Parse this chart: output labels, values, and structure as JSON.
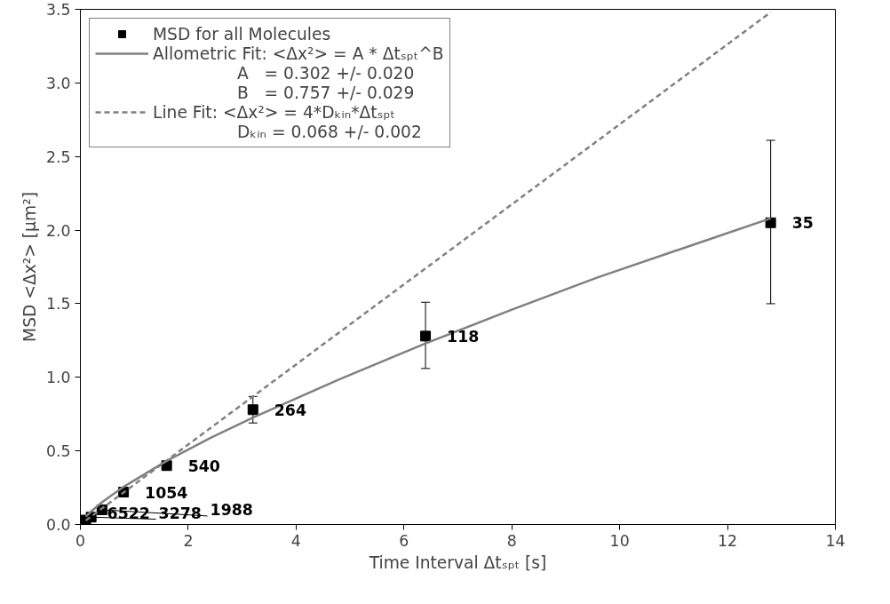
{
  "chart_data": {
    "type": "scatter",
    "xlabel": "Time Interval Δtₛₚₜ [s]",
    "ylabel": "MSD <Δx²> [µm²]",
    "xlim": [
      0,
      14
    ],
    "xticks": [
      0,
      2,
      4,
      6,
      8,
      10,
      12,
      14
    ],
    "ylim": [
      0,
      3.5
    ],
    "yticks": [
      {
        "value": 0,
        "label": "0.0"
      },
      0.5,
      {
        "value": 1,
        "label": "1.0"
      },
      1.5,
      {
        "value": 2,
        "label": "2.0"
      },
      2.5,
      {
        "value": 3,
        "label": "3.0"
      },
      3.5
    ],
    "grid": false,
    "legend": "top left",
    "series": [
      {
        "name": "MSD for all Molecules",
        "marker": "square",
        "color": "#000000",
        "x": [
          0.1,
          0.2,
          0.4,
          0.8,
          1.6,
          3.2,
          6.4,
          12.8
        ],
        "values": [
          0.03,
          0.05,
          0.1,
          0.22,
          0.4,
          0.78,
          1.28,
          2.05
        ],
        "errors": [
          null,
          null,
          null,
          null,
          null,
          0.09,
          [
            1.06,
            1.51
          ],
          [
            1.5,
            2.61
          ]
        ]
      },
      {
        "name": "Allometric Fit: <Δx²> = A * Δtₛₚₜ^B",
        "type": "line",
        "line_style": "solid",
        "color": "#808080",
        "x": [
          0.1,
          0.2,
          0.4,
          0.8,
          1.6,
          2.4,
          3.2,
          4.8,
          6.4,
          8,
          9.6,
          11.2,
          12.8
        ],
        "values": [
          0.053,
          0.089,
          0.151,
          0.256,
          0.432,
          0.586,
          0.726,
          0.986,
          1.23,
          1.46,
          1.68,
          1.88,
          2.08
        ]
      },
      {
        "name": "Line Fit: <Δx²> = 4*Dₖᵢₙ*Δtₛₚₜ",
        "type": "line",
        "line_style": "dashed",
        "color": "#808080",
        "x": [
          0.1,
          12.8
        ],
        "values": [
          0.027,
          3.48
        ]
      }
    ],
    "annotations": [
      "A   = 0.302 +/- 0.020",
      "B   = 0.757 +/- 0.029",
      "Dₖᵢₙ = 0.068 +/- 0.002",
      {
        "text": "6522",
        "x": 0.1,
        "y": 0.03
      },
      {
        "text": "3278",
        "x": 0.2,
        "y": 0.05
      },
      {
        "text": "1988",
        "x": 0.4,
        "y": 0.1
      },
      {
        "text": "1054",
        "x": 0.8,
        "y": 0.22
      },
      {
        "text": "540",
        "x": 1.6,
        "y": 0.4
      },
      {
        "text": "264",
        "x": 3.2,
        "y": 0.78
      },
      {
        "text": "118",
        "x": 6.4,
        "y": 1.28
      },
      {
        "text": "35",
        "x": 12.8,
        "y": 2.05
      }
    ]
  }
}
